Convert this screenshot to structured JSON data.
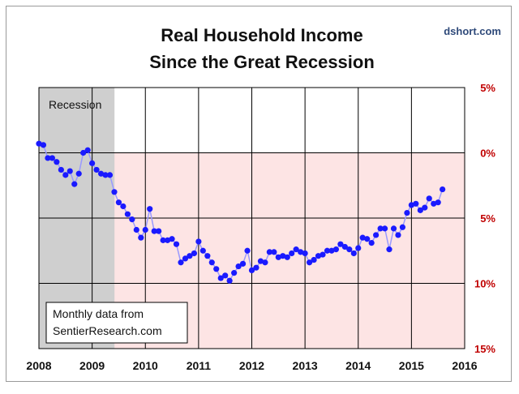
{
  "chart_data": {
    "type": "line",
    "title": [
      "Real Household Income",
      "Since the Great Recession"
    ],
    "source": "dshort.com",
    "shaded_band": {
      "label": "Recession",
      "x_start": 2008.0,
      "x_end": 2009.42
    },
    "note": [
      "Monthly data from",
      "SentierResearch.com"
    ],
    "x_ticks": [
      2008,
      2009,
      2010,
      2011,
      2012,
      2013,
      2014,
      2015,
      2016
    ],
    "xlim": [
      2008,
      2016
    ],
    "y_ticks": [
      5,
      0,
      -5,
      -10,
      -15
    ],
    "y_tick_labels": [
      "5%",
      "0%",
      "5%",
      "10%",
      "15%"
    ],
    "ylim": [
      -15,
      5
    ],
    "xlabel": "",
    "ylabel": "",
    "series": [
      {
        "name": "Real Household Income (% change)",
        "x": [
          2008.0,
          2008.083,
          2008.167,
          2008.25,
          2008.333,
          2008.417,
          2008.5,
          2008.583,
          2008.667,
          2008.75,
          2008.833,
          2008.917,
          2009.0,
          2009.083,
          2009.167,
          2009.25,
          2009.333,
          2009.417,
          2009.5,
          2009.583,
          2009.667,
          2009.75,
          2009.833,
          2009.917,
          2010.0,
          2010.083,
          2010.167,
          2010.25,
          2010.333,
          2010.417,
          2010.5,
          2010.583,
          2010.667,
          2010.75,
          2010.833,
          2010.917,
          2011.0,
          2011.083,
          2011.167,
          2011.25,
          2011.333,
          2011.417,
          2011.5,
          2011.583,
          2011.667,
          2011.75,
          2011.833,
          2011.917,
          2012.0,
          2012.083,
          2012.167,
          2012.25,
          2012.333,
          2012.417,
          2012.5,
          2012.583,
          2012.667,
          2012.75,
          2012.833,
          2012.917,
          2013.0,
          2013.083,
          2013.167,
          2013.25,
          2013.333,
          2013.417,
          2013.5,
          2013.583,
          2013.667,
          2013.75,
          2013.833,
          2013.917,
          2014.0,
          2014.083,
          2014.167,
          2014.25,
          2014.333,
          2014.417,
          2014.5,
          2014.583,
          2014.667,
          2014.75,
          2014.833,
          2014.917,
          2015.0,
          2015.083,
          2015.167,
          2015.25,
          2015.333,
          2015.417,
          2015.5,
          2015.583
        ],
        "values": [
          0.7,
          0.6,
          -0.4,
          -0.4,
          -0.7,
          -1.3,
          -1.7,
          -1.4,
          -2.4,
          -1.6,
          0.0,
          0.2,
          -0.8,
          -1.3,
          -1.6,
          -1.7,
          -1.7,
          -3.0,
          -3.8,
          -4.1,
          -4.7,
          -5.1,
          -5.9,
          -6.5,
          -5.9,
          -4.3,
          -6.0,
          -6.0,
          -6.7,
          -6.7,
          -6.6,
          -7.0,
          -8.4,
          -8.1,
          -7.9,
          -7.7,
          -6.8,
          -7.5,
          -7.9,
          -8.4,
          -8.9,
          -9.6,
          -9.4,
          -9.8,
          -9.2,
          -8.7,
          -8.5,
          -7.5,
          -9.0,
          -8.8,
          -8.3,
          -8.4,
          -7.6,
          -7.6,
          -8.0,
          -7.9,
          -8.0,
          -7.7,
          -7.4,
          -7.6,
          -7.7,
          -8.4,
          -8.2,
          -7.9,
          -7.8,
          -7.5,
          -7.5,
          -7.4,
          -7.0,
          -7.2,
          -7.4,
          -7.7,
          -7.3,
          -6.5,
          -6.6,
          -6.9,
          -6.3,
          -5.8,
          -5.8,
          -7.4,
          -5.8,
          -6.3,
          -5.7,
          -4.6,
          -4.0,
          -3.9,
          -4.4,
          -4.2,
          -3.5,
          -3.9,
          -3.8,
          -2.8
        ]
      }
    ]
  },
  "colors": {
    "positive_band": "#ffffff",
    "negative_band": "#fde4e4",
    "recession_band": "#cfcfcf",
    "series_line": "#9999ff",
    "series_marker": "#1a1aff",
    "gridline": "#000000",
    "y_tick": "#c00000",
    "source": "#2f4a7a"
  }
}
